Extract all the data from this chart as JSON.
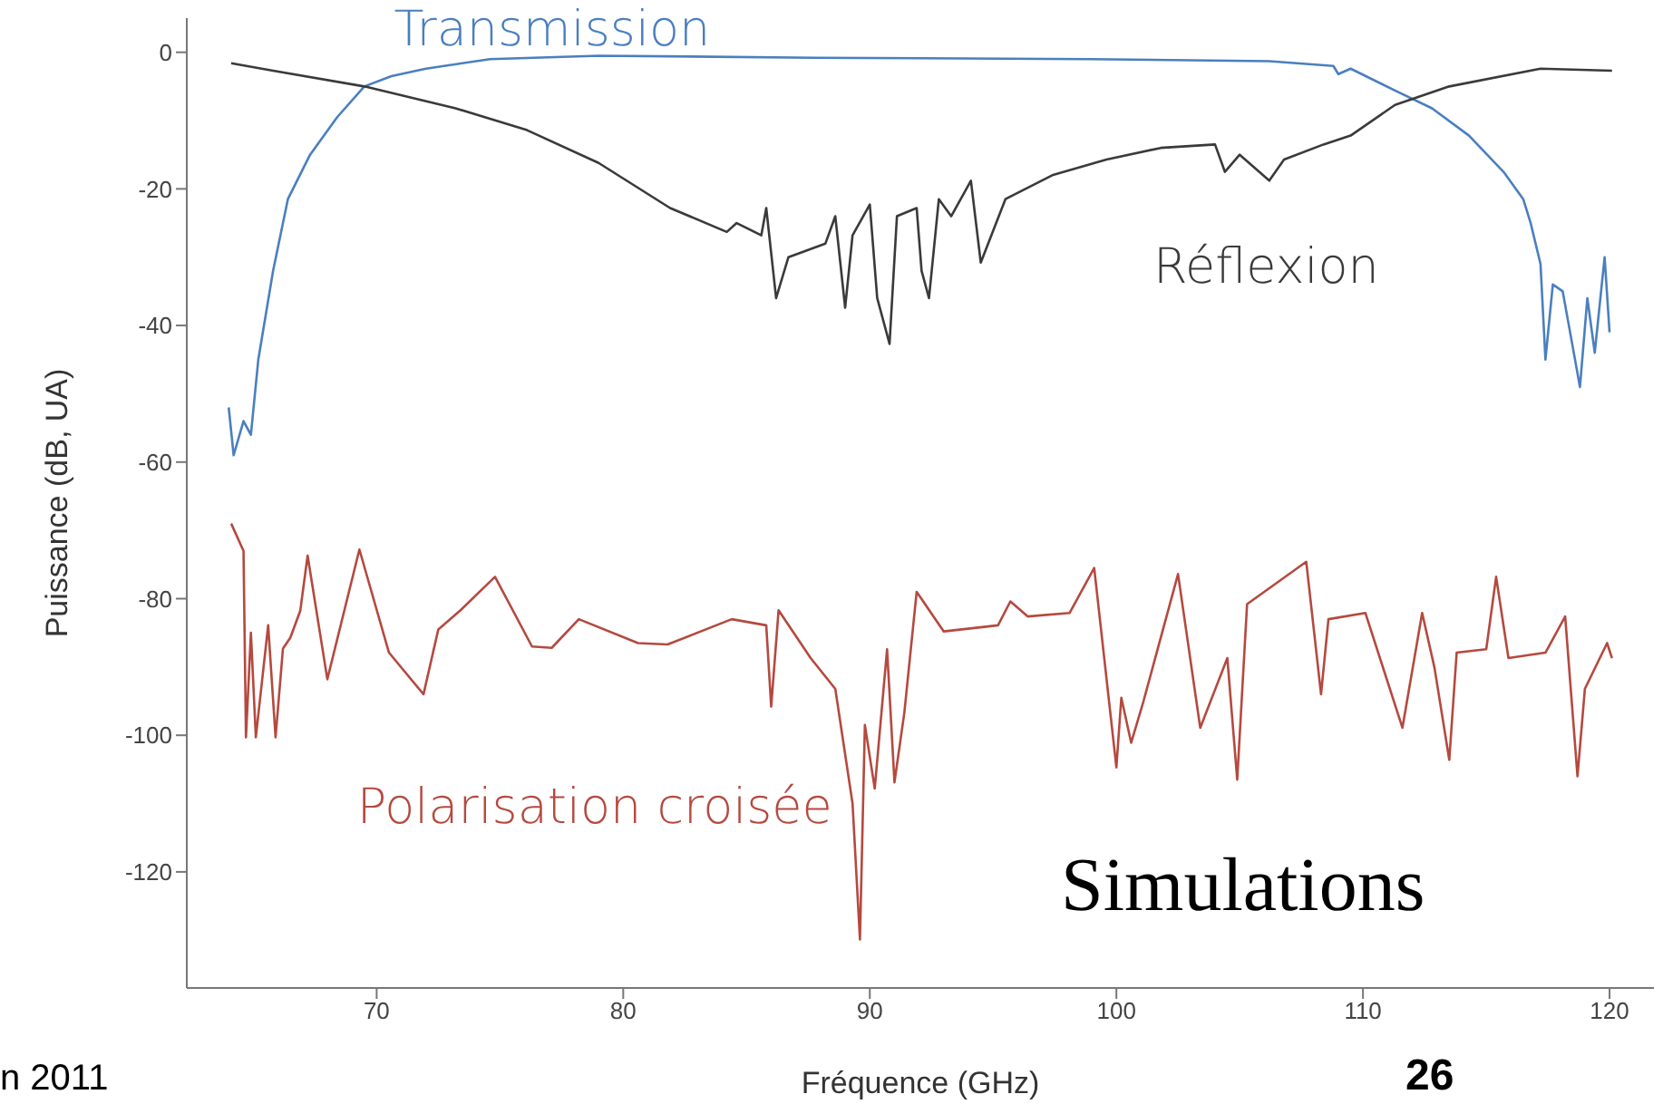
{
  "chart_data": {
    "type": "line",
    "xlabel": "Fréquence (GHz)",
    "ylabel": "Puissance (dB, UA)",
    "xlim": [
      62.3,
      121.8
    ],
    "ylim": [
      -137,
      5
    ],
    "xticks": [
      70,
      80,
      90,
      100,
      110,
      120
    ],
    "yticks": [
      -120,
      -100,
      -80,
      -60,
      -40,
      -20,
      0
    ],
    "grid": false,
    "legend": false,
    "marker": "none",
    "line_style": "solid",
    "annotations": [
      "Simulations",
      "n 2011",
      "26"
    ],
    "series": [
      {
        "name": "Transmission",
        "color": "#4a7fbf",
        "x": [
          64,
          64.2,
          64.6,
          64.9,
          65.2,
          65.8,
          66.4,
          67.3,
          68.4,
          69.5,
          70.6,
          72,
          74.6,
          79,
          87.8,
          98.9,
          106.2,
          108.8,
          109,
          109.5,
          111.3,
          112.8,
          114.3,
          115.7,
          116.5,
          116.8,
          117.2,
          117.4,
          117.7,
          118.1,
          118.4,
          118.8,
          119.1,
          119.4,
          119.8,
          120
        ],
        "values": [
          -52,
          -59,
          -54,
          -56,
          -45,
          -32,
          -21.5,
          -15,
          -9.5,
          -5,
          -3.5,
          -2.4,
          -1,
          -0.5,
          -0.8,
          -1,
          -1.3,
          -2,
          -3.2,
          -2.4,
          -5.6,
          -8.2,
          -12.2,
          -17.5,
          -21.5,
          -25,
          -31,
          -45,
          -34,
          -35,
          -41,
          -49,
          -36,
          -44,
          -30,
          -41
        ]
      },
      {
        "name": "Réflexion",
        "color": "#3a3a3a",
        "x": [
          64.1,
          65.8,
          69.5,
          73.2,
          76.1,
          79,
          81.9,
          84.2,
          84.6,
          85.6,
          85.8,
          86.2,
          86.7,
          88.2,
          88.6,
          89,
          89.3,
          90,
          90.3,
          90.8,
          91.1,
          91.9,
          92.1,
          92.4,
          92.8,
          93.3,
          94.1,
          94.5,
          95.5,
          97.4,
          99.6,
          101.8,
          104,
          104.4,
          105,
          106.2,
          106.8,
          108.4,
          109.5,
          111.3,
          113.5,
          117.2,
          120.1
        ],
        "values": [
          -1.6,
          -2.7,
          -5,
          -8.2,
          -11.4,
          -16.2,
          -22.8,
          -26.3,
          -25,
          -26.8,
          -22.8,
          -36,
          -30,
          -28,
          -24,
          -37.4,
          -26.8,
          -22.3,
          -36,
          -42.7,
          -24,
          -22.8,
          -32,
          -36,
          -21.5,
          -24,
          -18.8,
          -30.8,
          -21.5,
          -18,
          -15.7,
          -14,
          -13.5,
          -17.5,
          -15,
          -18.8,
          -15.7,
          -13.5,
          -12.2,
          -7.7,
          -5,
          -2.4,
          -2.7
        ]
      },
      {
        "name": "Polarisation croisée",
        "color": "#b5493f",
        "x": [
          64.1,
          64.6,
          64.7,
          64.9,
          65.1,
          65.6,
          65.9,
          66.2,
          66.5,
          66.9,
          67.2,
          68,
          69.3,
          70.5,
          71.9,
          72.5,
          73.4,
          74.8,
          76.3,
          77.1,
          78.2,
          80.6,
          81.8,
          84.4,
          85.8,
          86,
          86.3,
          87.6,
          88.6,
          89.3,
          89.6,
          89.8,
          90.2,
          90.7,
          91,
          91.4,
          91.9,
          93,
          95.2,
          95.7,
          96.4,
          98.1,
          99.1,
          100,
          100.2,
          100.6,
          101.1,
          102.5,
          103.4,
          104.5,
          104.9,
          105.3,
          107.7,
          108.3,
          108.6,
          110.1,
          111.6,
          112.4,
          112.9,
          113.5,
          113.8,
          115,
          115.4,
          115.9,
          117.4,
          118.2,
          118.7,
          119,
          119.9,
          120.1
        ],
        "values": [
          -69,
          -73,
          -100.3,
          -85,
          -100.3,
          -83.9,
          -100.3,
          -87.3,
          -85.7,
          -81.8,
          -73.7,
          -91.8,
          -72.8,
          -87.9,
          -94,
          -84.5,
          -81.7,
          -76.8,
          -87,
          -87.2,
          -83,
          -86.5,
          -86.7,
          -83,
          -83.9,
          -95.8,
          -81.7,
          -88.7,
          -93.2,
          -110,
          -129.9,
          -98.5,
          -107.8,
          -87.4,
          -106.9,
          -96.7,
          -79,
          -84.8,
          -83.9,
          -80.4,
          -82.6,
          -82.1,
          -75.5,
          -104.7,
          -94.5,
          -101.1,
          -95,
          -76.4,
          -98.9,
          -88.7,
          -106.5,
          -80.8,
          -74.6,
          -94,
          -83,
          -82.1,
          -98.9,
          -82.1,
          -90.1,
          -103.6,
          -87.9,
          -87.4,
          -76.8,
          -88.7,
          -87.9,
          -82.6,
          -106,
          -93.2,
          -86.5,
          -88.7
        ]
      }
    ]
  }
}
